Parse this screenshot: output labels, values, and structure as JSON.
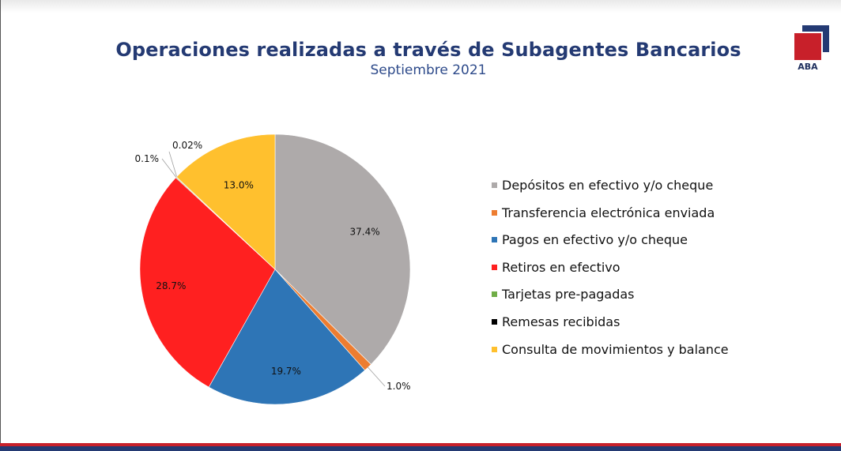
{
  "header": {
    "title": "Operaciones realizadas a través de Subagentes Bancarios",
    "subtitle": "Septiembre 2021",
    "logo_text": "ABA"
  },
  "colors": {
    "title": "#243a73",
    "logo_red": "#c8202a",
    "logo_blue": "#243a73"
  },
  "chart_data": {
    "type": "pie",
    "title": "Operaciones realizadas a través de Subagentes Bancarios",
    "subtitle": "Septiembre 2021",
    "legend_position": "right",
    "slices": [
      {
        "name": "Depósitos en efectivo y/o cheque",
        "value": 37.4,
        "label": "37.4%",
        "color": "#aeaaaa"
      },
      {
        "name": "Transferencia electrónica enviada",
        "value": 1.0,
        "label": "1.0%",
        "color": "#ed7d31"
      },
      {
        "name": "Pagos en efectivo y/o cheque",
        "value": 19.7,
        "label": "19.7%",
        "color": "#2e75b6"
      },
      {
        "name": "Retiros en efectivo",
        "value": 28.7,
        "label": "28.7%",
        "color": "#ff2020"
      },
      {
        "name": "Tarjetas pre-pagadas",
        "value": 0.1,
        "label": "0.1%",
        "color": "#70ad47"
      },
      {
        "name": "Remesas recibidas",
        "value": 0.02,
        "label": "0.02%",
        "color": "#000000"
      },
      {
        "name": "Consulta de movimientos y balance",
        "value": 13.0,
        "label": "13.0%",
        "color": "#ffc02e"
      }
    ]
  }
}
